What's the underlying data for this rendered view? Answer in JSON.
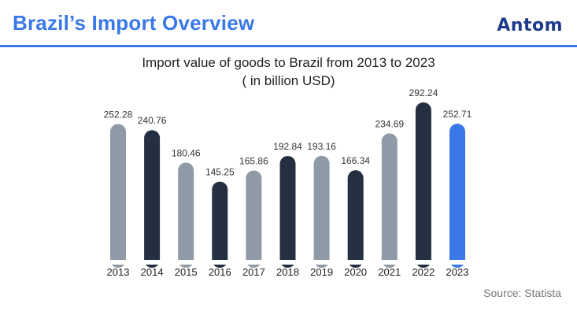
{
  "header": {
    "title": "Brazil’s Import Overview",
    "brand": "Antom"
  },
  "source": "Source: Statista",
  "colors": {
    "accent": "#3a78e8",
    "gray_bar": "#8e9aa6",
    "dark_bar": "#243041",
    "highlight_bar": "#3a78e8"
  },
  "chart_data": {
    "type": "bar",
    "title": "Import value of goods to Brazil from 2013 to 2023",
    "subtitle": "( in billion USD)",
    "xlabel": "",
    "ylabel": "",
    "ylim": [
      0,
      300
    ],
    "grid": false,
    "categories": [
      "2013",
      "2014",
      "2015",
      "2016",
      "2017",
      "2018",
      "2019",
      "2020",
      "2021",
      "2022",
      "2023"
    ],
    "values": [
      252.28,
      240.76,
      180.46,
      145.25,
      165.86,
      192.84,
      193.16,
      166.34,
      234.69,
      292.24,
      252.71
    ],
    "labels": [
      "252.28",
      "240.76",
      "180.46",
      "145.25",
      "165.86",
      "192.84",
      "193.16",
      "166.34",
      "234.69",
      "292.24",
      "252.71"
    ],
    "bar_colors": [
      "gray",
      "dark",
      "gray",
      "dark",
      "gray",
      "dark",
      "gray",
      "dark",
      "gray",
      "dark",
      "highlight"
    ]
  }
}
